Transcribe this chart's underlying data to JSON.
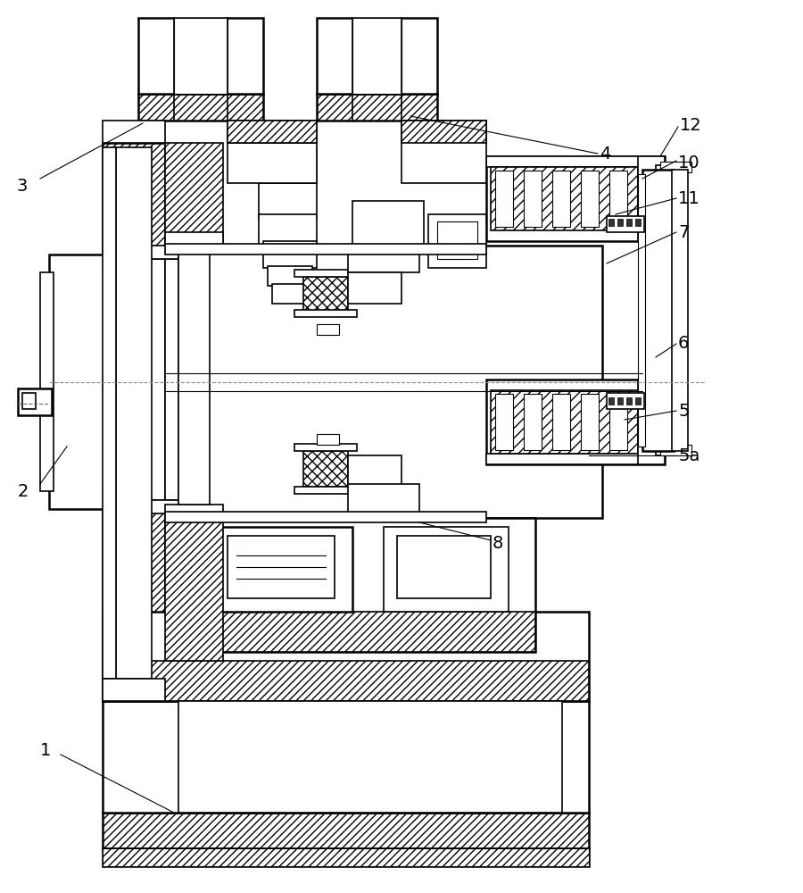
{
  "bg_color": "#ffffff",
  "line_color": "#000000",
  "label_color": "#000000",
  "figsize": [
    9.0,
    10.0
  ],
  "dpi": 100,
  "lw_thin": 0.8,
  "lw_med": 1.2,
  "lw_thick": 1.8,
  "label_fontsize": 14
}
